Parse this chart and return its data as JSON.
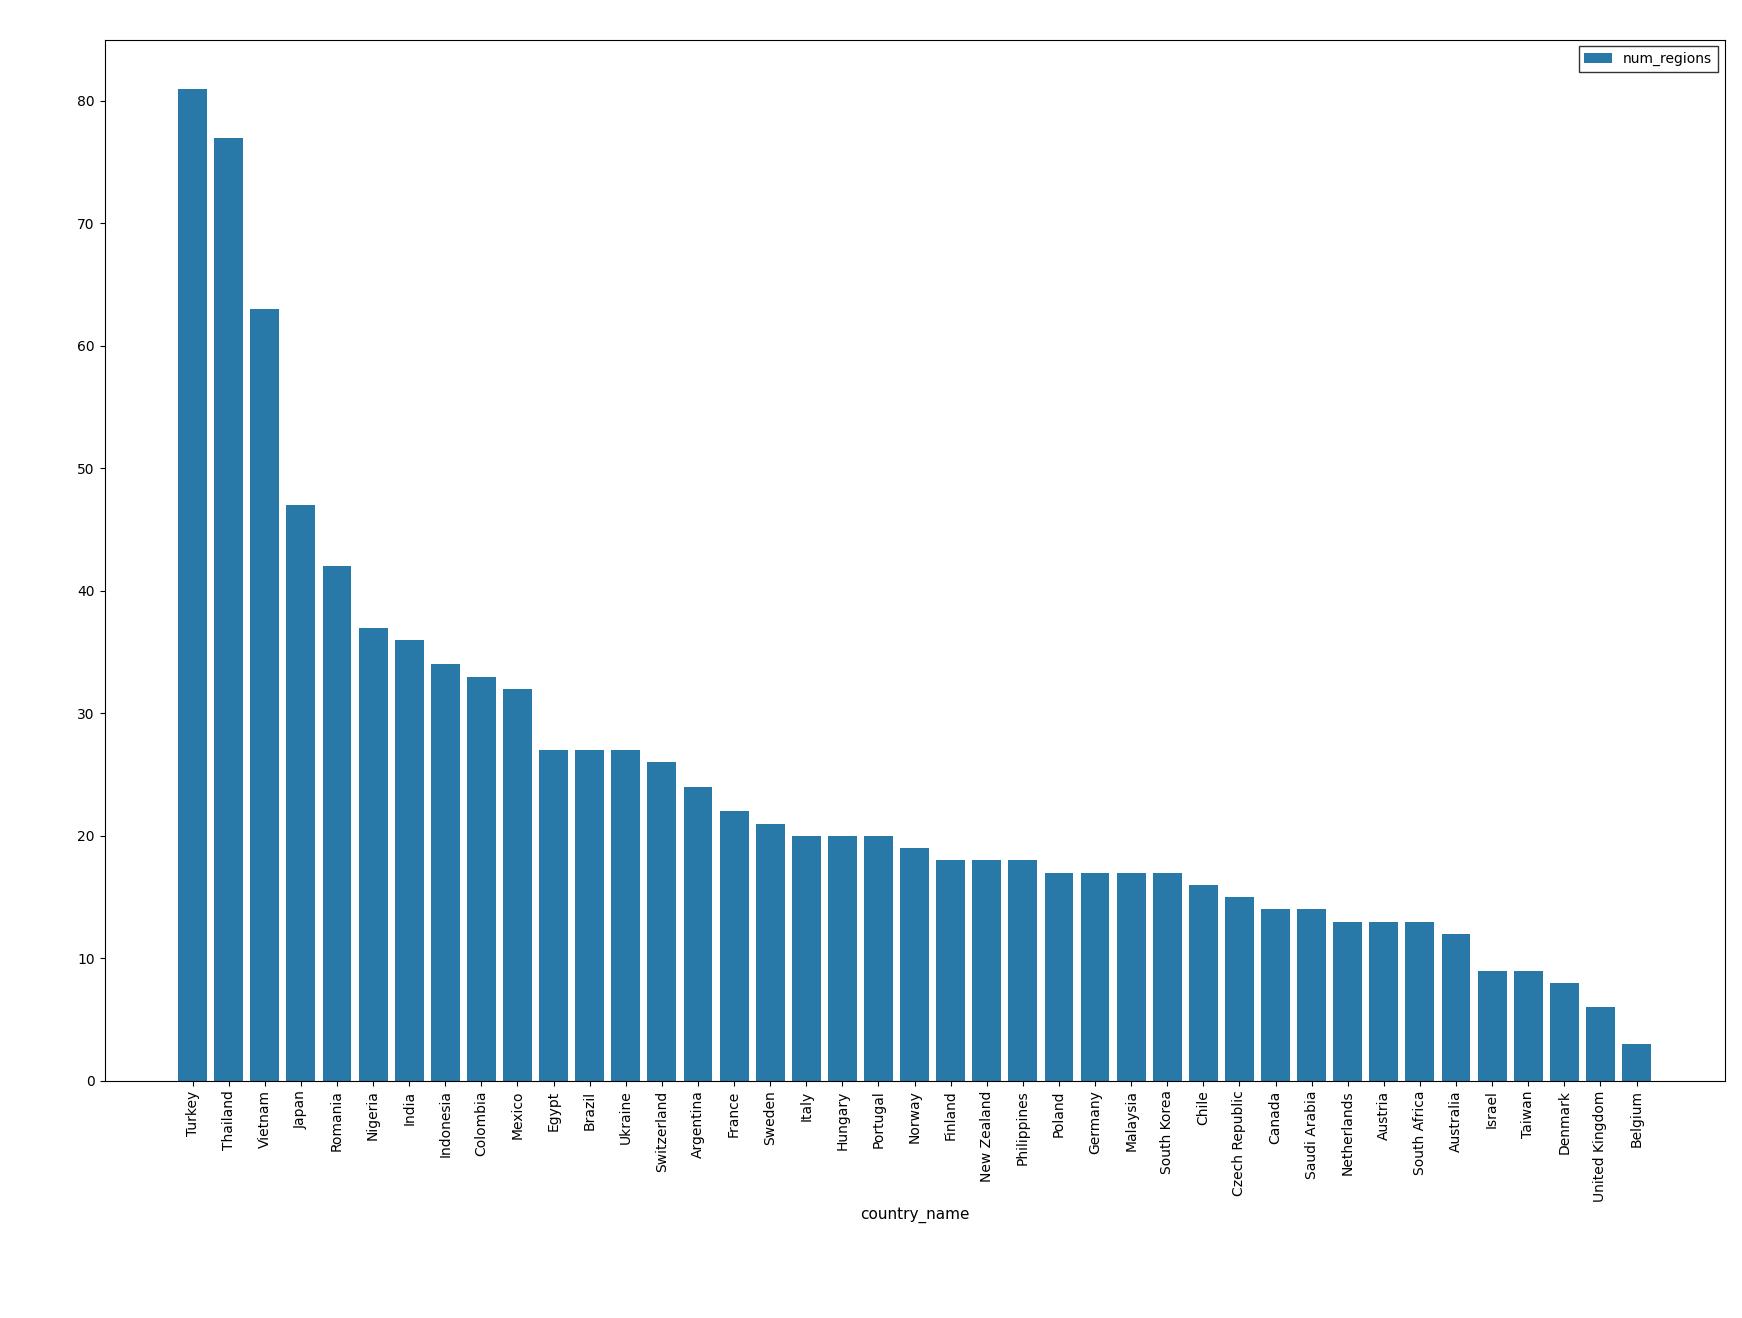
{
  "categories": [
    "Turkey",
    "Thailand",
    "Vietnam",
    "Japan",
    "Romania",
    "Nigeria",
    "India",
    "Indonesia",
    "Colombia",
    "Mexico",
    "Egypt",
    "Brazil",
    "Ukraine",
    "Switzerland",
    "Argentina",
    "France",
    "Sweden",
    "Italy",
    "Hungary",
    "Portugal",
    "Norway",
    "Finland",
    "New Zealand",
    "Philippines",
    "Poland",
    "Germany",
    "Malaysia",
    "South Korea",
    "Chile",
    "Czech Republic",
    "Canada",
    "Saudi Arabia",
    "Netherlands",
    "Austria",
    "South Africa",
    "Australia",
    "Israel",
    "Taiwan",
    "Denmark",
    "United Kingdom",
    "Belgium"
  ],
  "values": [
    81,
    77,
    63,
    47,
    42,
    37,
    36,
    34,
    33,
    32,
    27,
    27,
    27,
    26,
    24,
    22,
    21,
    20,
    20,
    20,
    19,
    18,
    18,
    18,
    17,
    17,
    17,
    17,
    16,
    15,
    14,
    14,
    13,
    13,
    13,
    12,
    9,
    9,
    8,
    6,
    3
  ],
  "bar_color": "#2878a8",
  "xlabel": "country_name",
  "ylabel": "",
  "legend_label": "num_regions",
  "ylim": [
    0,
    85
  ],
  "yticks": [
    0,
    10,
    20,
    30,
    40,
    50,
    60,
    70,
    80
  ],
  "background_color": "#ffffff",
  "fig_width": 17.42,
  "fig_height": 13.18,
  "dpi": 100
}
